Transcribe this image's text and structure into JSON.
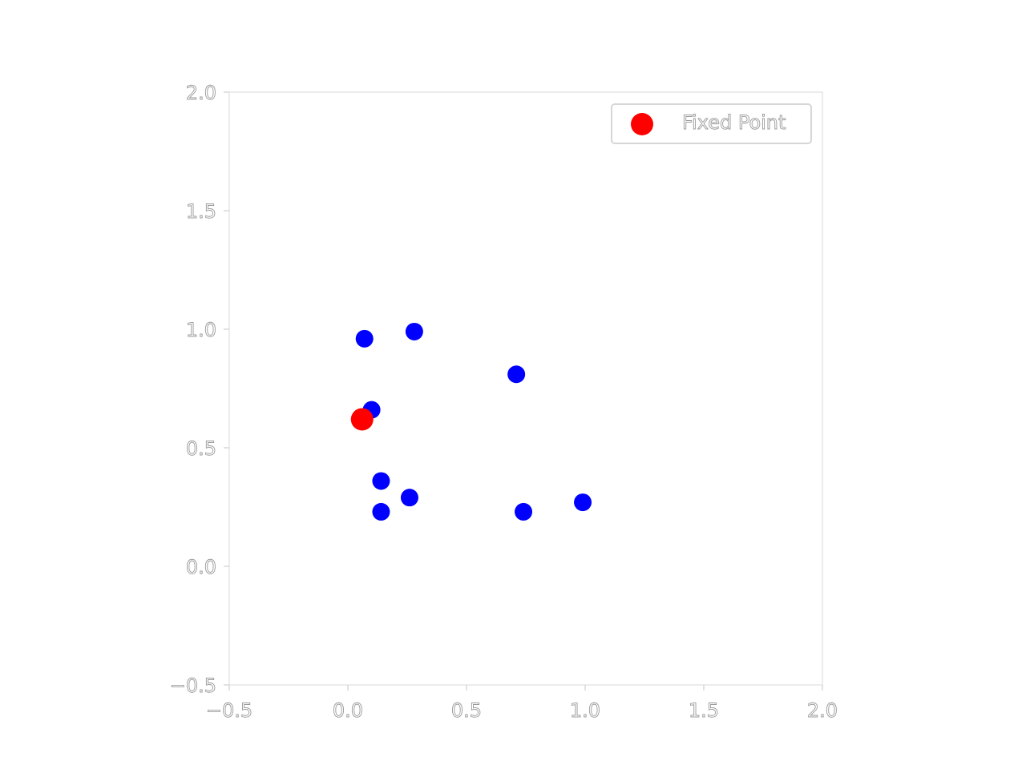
{
  "chart_data": {
    "type": "scatter",
    "title": "",
    "xlabel": "",
    "ylabel": "",
    "xlim": [
      -0.5,
      2.0
    ],
    "ylim": [
      -0.5,
      2.0
    ],
    "x_ticks": [
      "−0.5",
      "0.0",
      "0.5",
      "1.0",
      "1.5",
      "2.0"
    ],
    "y_ticks": [
      "−0.5",
      "0.0",
      "0.5",
      "1.0",
      "1.5",
      "2.0"
    ],
    "x_tick_values": [
      -0.5,
      0.0,
      0.5,
      1.0,
      1.5,
      2.0
    ],
    "y_tick_values": [
      -0.5,
      0.0,
      0.5,
      1.0,
      1.5,
      2.0
    ],
    "grid": false,
    "legend_position": "top-right",
    "series": [
      {
        "name": "",
        "color": "#0000ff",
        "points": [
          {
            "x": 0.07,
            "y": 0.96
          },
          {
            "x": 0.28,
            "y": 0.99
          },
          {
            "x": 0.71,
            "y": 0.81
          },
          {
            "x": 0.1,
            "y": 0.66
          },
          {
            "x": 0.14,
            "y": 0.36
          },
          {
            "x": 0.26,
            "y": 0.29
          },
          {
            "x": 0.14,
            "y": 0.23
          },
          {
            "x": 0.74,
            "y": 0.23
          },
          {
            "x": 0.99,
            "y": 0.27
          }
        ]
      },
      {
        "name": "Fixed Point",
        "color": "#ff0000",
        "points": [
          {
            "x": 0.06,
            "y": 0.62
          }
        ]
      }
    ],
    "legend_entries": [
      "Fixed Point"
    ]
  }
}
